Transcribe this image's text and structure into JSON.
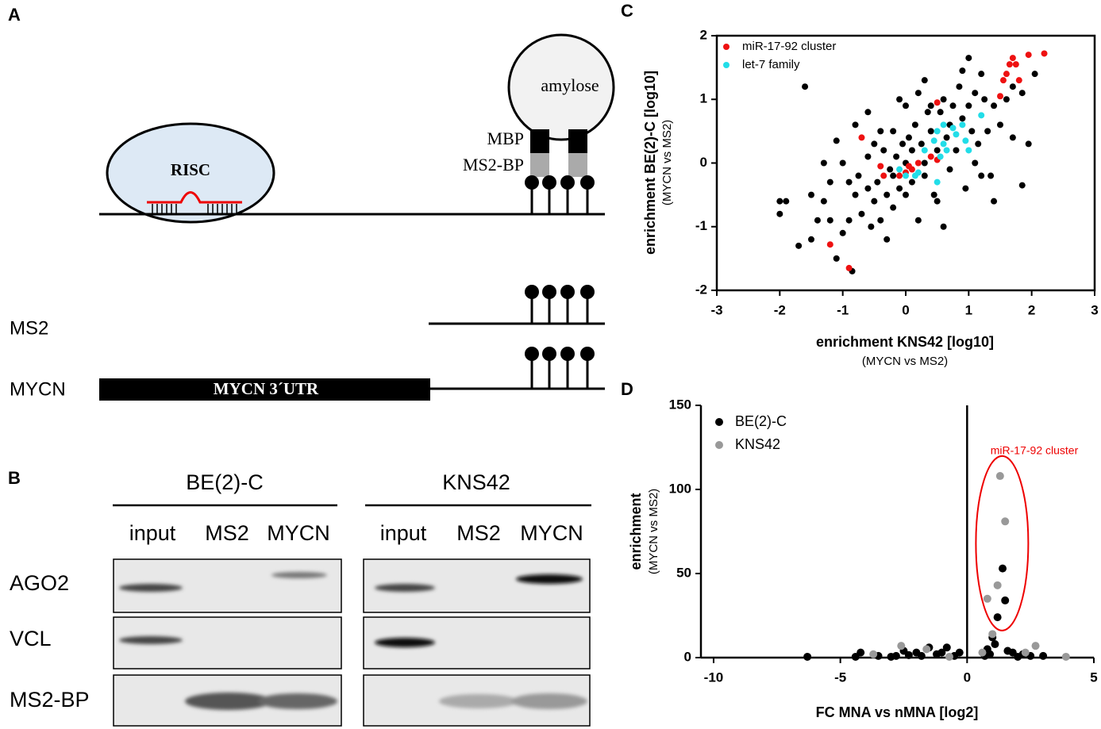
{
  "panel_labels": [
    "A",
    "B",
    "C",
    "D"
  ],
  "diagram": {
    "risc": "RISC",
    "amylose": "amylose",
    "mbp": "MBP",
    "ms2_bp": "MS2-BP",
    "rows": [
      "MS2",
      "MYCN"
    ],
    "utr": "MYCN 3´UTR"
  },
  "blot": {
    "groups": [
      {
        "name": "BE(2)-C",
        "lanes": [
          "input",
          "MS2",
          "MYCN"
        ]
      },
      {
        "name": "KNS42",
        "lanes": [
          "input",
          "MS2",
          "MYCN"
        ]
      }
    ],
    "rows": [
      "AGO2",
      "VCL",
      "MS2-BP"
    ]
  },
  "chart_data": [
    {
      "type": "scatter",
      "xlabel": "enrichment KNS42 [log10]",
      "xlabel_note": "(MYCN vs MS2)",
      "ylabel": "enrichment BE(2)-C [log10]",
      "ylabel_note": "(MYCN vs MS2)",
      "xlim": [
        -3,
        3
      ],
      "xticks": [
        -3,
        -2,
        -1,
        0,
        1,
        2,
        3
      ],
      "ylim": [
        -2,
        2
      ],
      "yticks": [
        -2,
        -1,
        0,
        1,
        2
      ],
      "legend": "upper left",
      "series": [
        {
          "color": "#000000",
          "x": [
            -1.6,
            -2,
            -2,
            -1.9,
            -1.5,
            -1.4,
            -1.3,
            -1.2,
            -1.1,
            -1.0,
            -0.9,
            -0.85,
            -0.8,
            -0.75,
            -0.7,
            -0.6,
            -0.6,
            -0.55,
            -0.5,
            -0.5,
            -0.45,
            -0.4,
            -0.35,
            -0.3,
            -0.25,
            -0.2,
            -0.2,
            -0.15,
            -0.1,
            -0.05,
            0,
            0,
            0.05,
            0.1,
            0.15,
            0.2,
            0.25,
            0.3,
            0.35,
            0.4,
            0.45,
            0.5,
            0.55,
            0.6,
            0.65,
            0.7,
            0.75,
            0.8,
            0.85,
            0.9,
            0.95,
            1.0,
            1.05,
            1.1,
            1.15,
            1.25,
            1.3,
            1.35,
            1.4,
            1.5,
            1.6,
            1.7,
            1.85,
            1.85,
            1.95,
            2.05,
            1.0,
            0.3,
            -0.1,
            -1.1,
            -1.0,
            -1.5,
            -1.7,
            -0.3,
            0.6,
            1.4,
            1.2,
            -0.8,
            0.9,
            1.2,
            0.2,
            -0.6,
            -1.3,
            0.0,
            0.1,
            -0.2,
            0.3,
            0.4,
            0.7,
            -0.4,
            -1.2,
            -0.9,
            0.5,
            1.1,
            1.7
          ],
          "values": [
            1.2,
            -0.6,
            -0.8,
            -0.6,
            -1.2,
            -0.9,
            -0.6,
            -0.3,
            -1.5,
            -1.1,
            -0.9,
            -1.7,
            -0.5,
            -0.2,
            -0.8,
            -0.4,
            0.1,
            -1.0,
            -0.6,
            0.3,
            -0.3,
            -0.9,
            0.2,
            -0.5,
            -0.1,
            0.5,
            -0.7,
            0.1,
            -0.4,
            0.3,
            0.9,
            -0.5,
            0.4,
            -0.3,
            0.6,
            -0.9,
            0.3,
            -0.2,
            0.8,
            0.5,
            -0.5,
            0.2,
            0.8,
            1.0,
            0.4,
            -0.1,
            0.9,
            0.2,
            1.2,
            0.7,
            -0.4,
            0.9,
            0.5,
            1.1,
            0.3,
            1.0,
            0.5,
            -0.2,
            0.9,
            0.6,
            1.0,
            0.4,
            1.1,
            -0.35,
            0.3,
            1.4,
            1.65,
            1.3,
            1.0,
            0.35,
            0.0,
            -0.5,
            -1.3,
            -1.2,
            -1.0,
            -0.6,
            -0.2,
            0.6,
            1.45,
            1.4,
            1.1,
            0.8,
            0.0,
            0.0,
            0.2,
            -0.2,
            0.0,
            0.9,
            0.6,
            0.5,
            -0.9,
            -0.3,
            -0.6,
            0.0,
            1.2
          ]
        },
        {
          "name": "miR-17-92 cluster",
          "color": "#ee1111",
          "x": [
            0.1,
            0,
            -0.1,
            0.05,
            0.2,
            -0.4,
            -0.35,
            -0.7,
            0.4,
            0.5,
            0.5,
            1.55,
            1.6,
            1.65,
            1.8,
            1.75,
            1.95,
            2.2,
            1.5,
            1.7,
            -0.9,
            -1.2
          ],
          "values": [
            -0.1,
            -0.15,
            -0.2,
            -0.05,
            0,
            -0.05,
            -0.2,
            0.4,
            0.1,
            0.95,
            0.05,
            1.3,
            1.4,
            1.55,
            1.3,
            1.55,
            1.7,
            1.72,
            1.05,
            1.65,
            -1.65,
            -1.28
          ]
        },
        {
          "name": "let-7 family",
          "color": "#22dde8",
          "x": [
            0.6,
            0.5,
            0.75,
            0.8,
            0.6,
            0.45,
            0.3,
            0.95,
            1.0,
            0.55,
            0.2,
            0.0,
            -0.1,
            0.65,
            0.9,
            1.2,
            0.15,
            0.5
          ],
          "values": [
            0.6,
            0.5,
            0.55,
            0.45,
            0.3,
            0.35,
            0.2,
            0.35,
            0.2,
            0.1,
            -0.15,
            -0.2,
            -0.1,
            0.2,
            0.6,
            0.75,
            -0.2,
            -0.3
          ]
        }
      ]
    },
    {
      "type": "scatter",
      "xlabel": "FC MNA vs nMNA [log2]",
      "ylabel": "enrichment",
      "ylabel_note": "(MYCN vs MS2)",
      "xlim": [
        -10.5,
        5
      ],
      "xticks": [
        -10,
        -5,
        0,
        5
      ],
      "ylim": [
        0,
        150
      ],
      "yticks": [
        0,
        50,
        100,
        150
      ],
      "legend": "upper left",
      "annotation": "miR-17-92 cluster",
      "series": [
        {
          "name": "BE(2)-C",
          "color": "#000000",
          "x": [
            1.4,
            1.5,
            1.2,
            1.0,
            -6.3,
            -4.2,
            -4.4,
            -3.5,
            -2.5,
            -2,
            -1.5,
            -0.8,
            -2.8,
            -1.8,
            -1.2,
            -0.5,
            1.8,
            2.2,
            2.5,
            3,
            0.8,
            1.1,
            0.9,
            1.6,
            2.0,
            -3,
            -2.3,
            -1.0,
            -0.3,
            0.7
          ],
          "values": [
            53,
            34,
            24,
            12,
            0.5,
            3,
            0.5,
            1,
            4,
            3,
            6,
            6,
            1,
            1,
            2,
            1,
            3,
            2,
            1,
            1,
            5,
            8,
            2,
            4,
            0.5,
            0.5,
            1.5,
            3,
            3,
            1
          ]
        },
        {
          "name": "KNS42",
          "color": "#999999",
          "x": [
            1.3,
            1.5,
            1.2,
            0.8,
            1.0,
            -2.6,
            -1.6,
            2.7,
            3.9,
            -0.7,
            0.6,
            2.3,
            -3.7
          ],
          "values": [
            108,
            81,
            43,
            35,
            14,
            7,
            5,
            7,
            0.5,
            0.5,
            3,
            3,
            2
          ]
        }
      ]
    }
  ]
}
